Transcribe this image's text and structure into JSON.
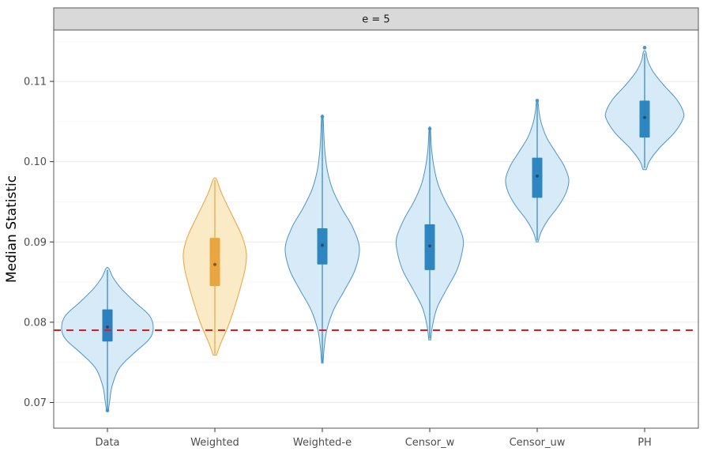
{
  "chart_data": {
    "type": "violin",
    "facet_label": "e = 5",
    "ylabel": "Median Statistic",
    "xlabel": "",
    "y_domain": [
      0.0668,
      0.1164
    ],
    "y_major_ticks": [
      0.07,
      0.08,
      0.09,
      0.1,
      0.11
    ],
    "y_tick_labels": [
      "0.07",
      "0.08",
      "0.09",
      "0.10",
      "0.11"
    ],
    "y_minor_ticks": [
      0.075,
      0.085,
      0.095,
      0.105,
      0.115
    ],
    "grid": {
      "major_color": "#ebebeb",
      "minor_color": "#f5f5f5",
      "visible": true
    },
    "legend": "none",
    "reference_line": {
      "value": 0.079,
      "color": "#e41a1c",
      "dash": "9,7",
      "width": 2
    },
    "categories": [
      "Data",
      "Weighted",
      "Weighted-e",
      "Censor_w",
      "Censor_uw",
      "PH"
    ],
    "theme": {
      "strip_background": "#d9d9d9",
      "panel_border": "#595959",
      "axis_text_color": "#4d4d4d",
      "tick_color": "#333333"
    },
    "series": [
      {
        "name": "Data",
        "fill": "#d7eaf7",
        "stroke": "#4d94c4",
        "box_color": "#2e7fbe",
        "max_halfwidth": 58,
        "shape": [
          [
            0.069,
            0.02
          ],
          [
            0.0702,
            0.05
          ],
          [
            0.072,
            0.1
          ],
          [
            0.0742,
            0.25
          ],
          [
            0.076,
            0.55
          ],
          [
            0.0778,
            0.9
          ],
          [
            0.0792,
            1.0
          ],
          [
            0.0808,
            0.92
          ],
          [
            0.0825,
            0.6
          ],
          [
            0.0842,
            0.3
          ],
          [
            0.0856,
            0.12
          ],
          [
            0.0867,
            0.03
          ]
        ],
        "whisker": [
          0.069,
          0.0865
        ],
        "box": [
          0.0776,
          0.0816
        ],
        "median": 0.0794,
        "outliers": [
          0.069
        ]
      },
      {
        "name": "Weighted",
        "fill": "#fbeac6",
        "stroke": "#e8a33d",
        "box_color": "#e9a540",
        "max_halfwidth": 40,
        "shape": [
          [
            0.0759,
            0.05
          ],
          [
            0.0775,
            0.2
          ],
          [
            0.0795,
            0.42
          ],
          [
            0.0818,
            0.62
          ],
          [
            0.0842,
            0.8
          ],
          [
            0.0865,
            0.95
          ],
          [
            0.0885,
            1.0
          ],
          [
            0.0905,
            0.88
          ],
          [
            0.0925,
            0.65
          ],
          [
            0.0945,
            0.4
          ],
          [
            0.0962,
            0.2
          ],
          [
            0.0978,
            0.05
          ]
        ],
        "whisker": [
          0.076,
          0.0977
        ],
        "box": [
          0.0845,
          0.0905
        ],
        "median": 0.0872,
        "outliers": []
      },
      {
        "name": "Weighted-e",
        "fill": "#d7eaf7",
        "stroke": "#4d94c4",
        "box_color": "#2e86c1",
        "max_halfwidth": 47,
        "shape": [
          [
            0.0749,
            0.02
          ],
          [
            0.0768,
            0.05
          ],
          [
            0.079,
            0.12
          ],
          [
            0.0815,
            0.3
          ],
          [
            0.084,
            0.6
          ],
          [
            0.0865,
            0.88
          ],
          [
            0.0892,
            1.0
          ],
          [
            0.0918,
            0.82
          ],
          [
            0.0942,
            0.52
          ],
          [
            0.0965,
            0.28
          ],
          [
            0.0988,
            0.14
          ],
          [
            0.1012,
            0.07
          ],
          [
            0.1035,
            0.04
          ],
          [
            0.1056,
            0.02
          ]
        ],
        "whisker": [
          0.075,
          0.1055
        ],
        "box": [
          0.0872,
          0.0917
        ],
        "median": 0.0896,
        "outliers": [
          0.1056
        ]
      },
      {
        "name": "Censor_w",
        "fill": "#d7eaf7",
        "stroke": "#4d94c4",
        "box_color": "#2e86c1",
        "max_halfwidth": 42,
        "shape": [
          [
            0.0778,
            0.03
          ],
          [
            0.0795,
            0.08
          ],
          [
            0.0818,
            0.22
          ],
          [
            0.0842,
            0.52
          ],
          [
            0.0865,
            0.82
          ],
          [
            0.0888,
            0.98
          ],
          [
            0.0905,
            1.0
          ],
          [
            0.0928,
            0.78
          ],
          [
            0.095,
            0.48
          ],
          [
            0.0972,
            0.25
          ],
          [
            0.0995,
            0.12
          ],
          [
            0.1018,
            0.05
          ],
          [
            0.1041,
            0.02
          ]
        ],
        "whisker": [
          0.078,
          0.104
        ],
        "box": [
          0.0865,
          0.0922
        ],
        "median": 0.0895,
        "outliers": [
          0.1041
        ]
      },
      {
        "name": "Censor_uw",
        "fill": "#d7eaf7",
        "stroke": "#4d94c4",
        "box_color": "#2e86c1",
        "max_halfwidth": 40,
        "shape": [
          [
            0.09,
            0.03
          ],
          [
            0.0912,
            0.12
          ],
          [
            0.0928,
            0.35
          ],
          [
            0.0945,
            0.68
          ],
          [
            0.0962,
            0.92
          ],
          [
            0.0978,
            1.0
          ],
          [
            0.0995,
            0.85
          ],
          [
            0.1012,
            0.58
          ],
          [
            0.103,
            0.3
          ],
          [
            0.1048,
            0.13
          ],
          [
            0.1062,
            0.06
          ],
          [
            0.1076,
            0.02
          ]
        ],
        "whisker": [
          0.0902,
          0.1076
        ],
        "box": [
          0.0955,
          0.1005
        ],
        "median": 0.0982,
        "outliers": [
          0.1076
        ]
      },
      {
        "name": "PH",
        "fill": "#d7eaf7",
        "stroke": "#4d94c4",
        "box_color": "#2e86c1",
        "max_halfwidth": 49,
        "shape": [
          [
            0.099,
            0.04
          ],
          [
            0.1002,
            0.14
          ],
          [
            0.1018,
            0.4
          ],
          [
            0.1035,
            0.75
          ],
          [
            0.1052,
            0.98
          ],
          [
            0.1062,
            1.0
          ],
          [
            0.1078,
            0.82
          ],
          [
            0.1095,
            0.5
          ],
          [
            0.1112,
            0.22
          ],
          [
            0.1126,
            0.08
          ],
          [
            0.1137,
            0.03
          ]
        ],
        "whisker": [
          0.0992,
          0.1135
        ],
        "box": [
          0.103,
          0.1076
        ],
        "median": 0.1055,
        "outliers": [
          0.1142
        ]
      }
    ]
  }
}
